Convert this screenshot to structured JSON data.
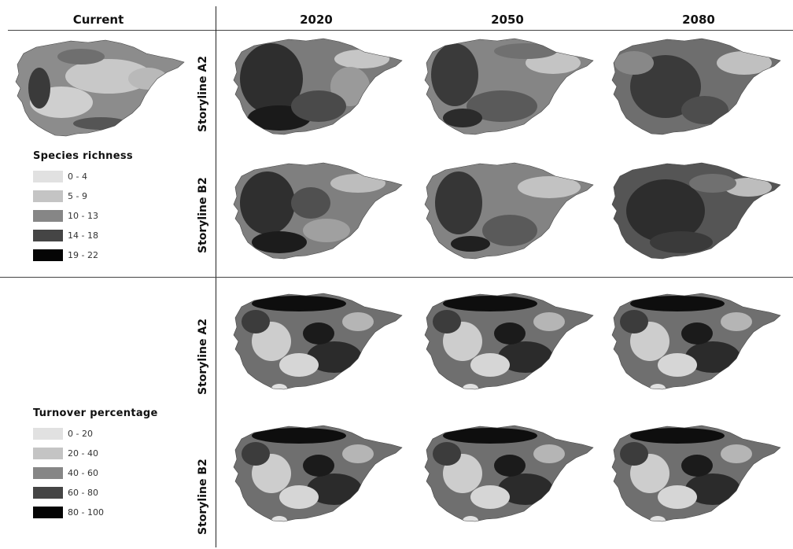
{
  "headers": {
    "current": "Current",
    "col2020": "2020",
    "col2050": "2050",
    "col2080": "2080"
  },
  "rows": {
    "richness_a2": "Storyline A2",
    "richness_b2": "Storyline B2",
    "turnover_a2": "Storyline A2",
    "turnover_b2": "Storyline B2"
  },
  "legend_richness": {
    "title": "Species richness",
    "items": [
      {
        "label": "0 - 4",
        "color": "#e1e1e1"
      },
      {
        "label": "5 - 9",
        "color": "#c4c4c4"
      },
      {
        "label": "10 - 13",
        "color": "#868686"
      },
      {
        "label": "14 - 18",
        "color": "#454545"
      },
      {
        "label": "19 - 22",
        "color": "#050505"
      }
    ]
  },
  "legend_turnover": {
    "title": "Turnover percentage",
    "items": [
      {
        "label": "0 - 20",
        "color": "#e1e1e1"
      },
      {
        "label": "20 - 40",
        "color": "#c4c4c4"
      },
      {
        "label": "40 - 60",
        "color": "#868686"
      },
      {
        "label": "60 - 80",
        "color": "#454545"
      },
      {
        "label": "80 - 100",
        "color": "#050505"
      }
    ]
  }
}
